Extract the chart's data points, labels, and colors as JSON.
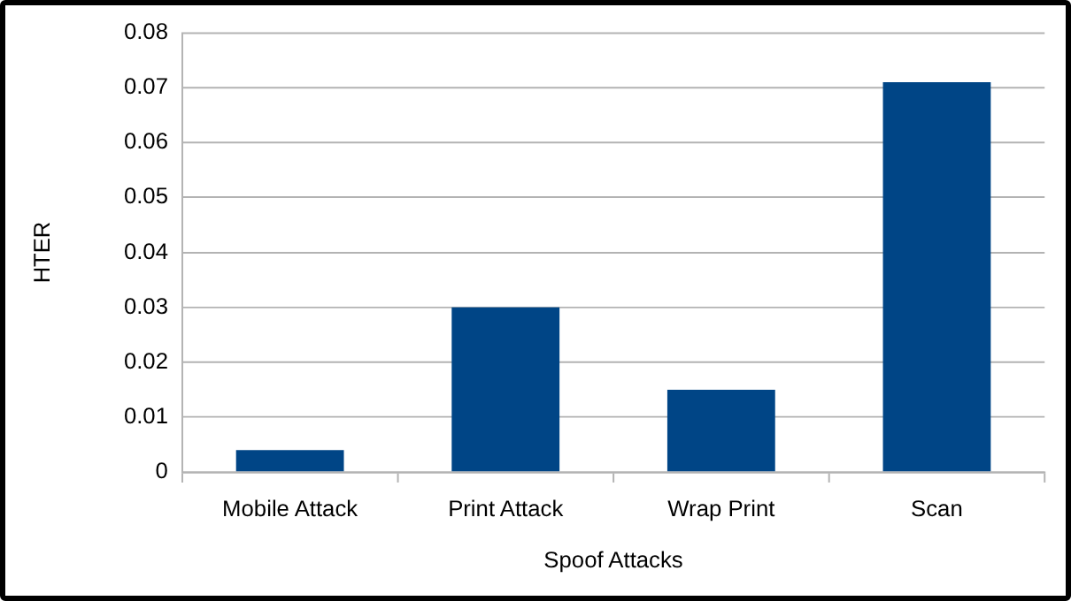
{
  "chart_data": {
    "type": "bar",
    "xlabel": "Spoof Attacks",
    "ylabel": "HTER",
    "categories": [
      "Mobile Attack",
      "Print Attack",
      "Wrap Print",
      "Scan"
    ],
    "values": [
      0.004,
      0.03,
      0.015,
      0.071
    ],
    "color": "#004586",
    "ylim": [
      0,
      0.08
    ],
    "yticks": [
      0,
      0.01,
      0.02,
      0.03,
      0.04,
      0.05,
      0.06,
      0.07,
      0.08
    ],
    "grid": "y"
  }
}
